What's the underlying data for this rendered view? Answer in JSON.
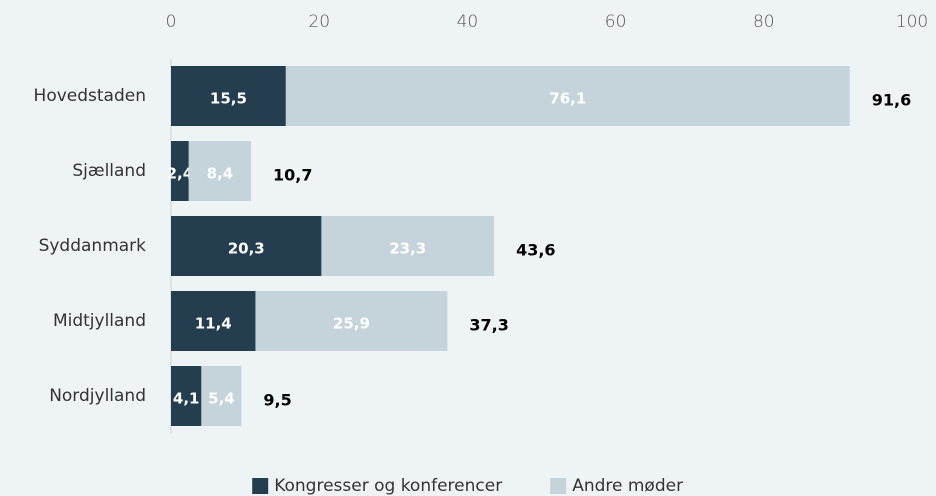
{
  "chart_data": {
    "type": "stacked-barh",
    "categories": [
      "Hovedstaden",
      "Sjælland",
      "Syddanmark",
      "Midtjylland",
      "Nordjylland"
    ],
    "series": [
      {
        "name": "Kongresser og konferencer",
        "color": "#243e4f",
        "values": [
          15.5,
          2.4,
          20.3,
          11.4,
          4.1
        ],
        "value_labels": [
          "15,5",
          "2,4",
          "20,3",
          "11,4",
          "4,1"
        ]
      },
      {
        "name": "Andre møder",
        "color": "#c5d4db",
        "values": [
          76.1,
          8.4,
          23.3,
          25.9,
          5.4
        ],
        "value_labels": [
          "76,1",
          "8,4",
          "23,3",
          "25,9",
          "5,4"
        ]
      }
    ],
    "totals": [
      91.6,
      10.7,
      43.6,
      37.3,
      9.5
    ],
    "total_labels": [
      "91,6",
      "10,7",
      "43,6",
      "37,3",
      "9,5"
    ],
    "xlim": [
      0,
      100
    ],
    "xticks": [
      0,
      20,
      40,
      60,
      80,
      100
    ],
    "legend": "bottom"
  }
}
